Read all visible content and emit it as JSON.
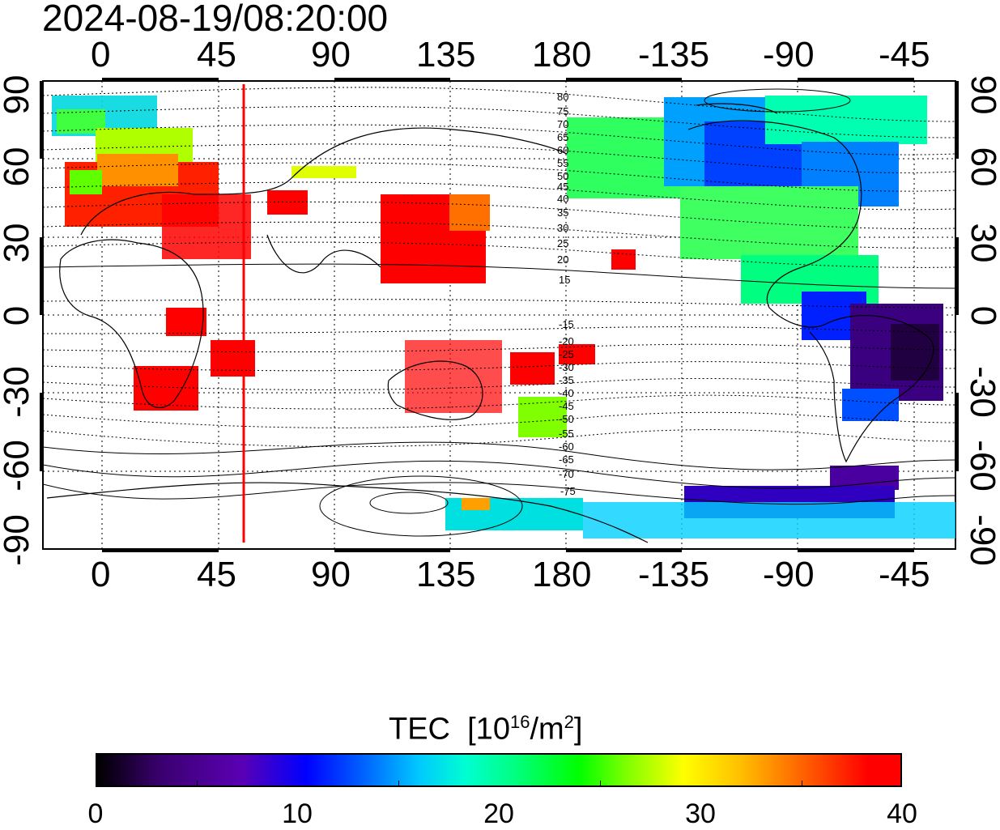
{
  "title": "2024-08-19/08:20:00",
  "longitude_ticks": [
    "0",
    "45",
    "90",
    "135",
    "180",
    "-135",
    "-90",
    "-45"
  ],
  "latitude_ticks": [
    "90",
    "60",
    "30",
    "0",
    "-30",
    "-60",
    "-90"
  ],
  "contour_labels_north": [
    "80",
    "75",
    "70",
    "65",
    "60",
    "55",
    "50",
    "45",
    "40",
    "35",
    "30",
    "25",
    "20",
    "15"
  ],
  "contour_labels_south": [
    "-15",
    "-20",
    "-25",
    "-30",
    "-35",
    "-40",
    "-45",
    "-50",
    "-55",
    "-60",
    "-65",
    "-70",
    "-75"
  ],
  "colorbar": {
    "label": "TEC",
    "unit_prefix": "[10",
    "unit_exp": "16",
    "unit_mid": "/m",
    "unit_exp2": "2",
    "unit_suffix": "]",
    "ticks": [
      "0",
      "10",
      "20",
      "30",
      "40"
    ],
    "range": [
      0,
      40
    ]
  },
  "marker": {
    "color": "#ff0000",
    "longitude": 55
  },
  "colors": {
    "high": "#ff0000",
    "mid": "#00ff40",
    "low": "#3b0090"
  }
}
